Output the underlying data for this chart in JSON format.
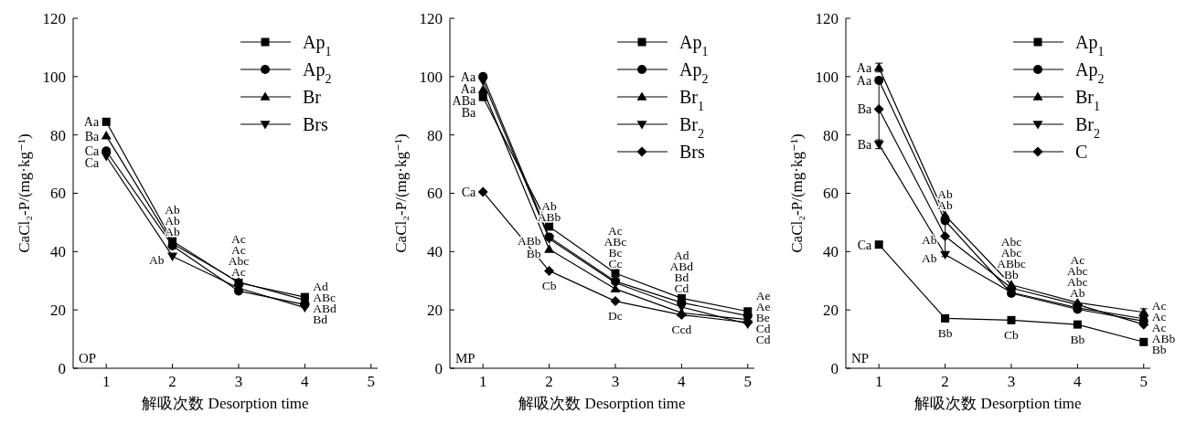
{
  "chart_data": [
    {
      "type": "line",
      "xlabel": "解吸次数 Desorption time",
      "ylabel": "CaCl₂-P/(mg·kg⁻¹)",
      "x": [
        1,
        2,
        3,
        4
      ],
      "xlim": [
        0.5,
        5.1
      ],
      "xticks": [
        1,
        2,
        3,
        4,
        5
      ],
      "ylim": [
        0,
        120
      ],
      "yticks": [
        0,
        20,
        40,
        60,
        80,
        100,
        120
      ],
      "grid": false,
      "legend": "top right",
      "line_style": "solid",
      "series": [
        {
          "name": "Ap$_{1}$",
          "color": "#000000",
          "marker": "square",
          "values": [
            84.5,
            43.6,
            29.3,
            24.4
          ],
          "value_labels": [
            "Aa",
            "Ab",
            "Ac",
            "Ad"
          ]
        },
        {
          "name": "Ap$_{2}$",
          "color": "#000000",
          "marker": "circle",
          "values": [
            74.5,
            42,
            26.5,
            21.8
          ],
          "value_labels": [
            "Ca",
            "Ab",
            "Ac",
            "ABd"
          ]
        },
        {
          "name": "Br",
          "color": "#000000",
          "marker": "triangle",
          "values": [
            79.7,
            42.8,
            29.6,
            23.4
          ],
          "value_labels": [
            "Ba",
            "Ab",
            "Ac",
            "ABc"
          ]
        },
        {
          "name": "Brs",
          "color": "#000000",
          "marker": "triangle-down",
          "values": [
            72.7,
            38.4,
            27.5,
            20.8
          ],
          "value_labels": [
            "Ca",
            "Ab",
            "Abc",
            "Bd"
          ]
        }
      ],
      "annotations": [
        "OP"
      ]
    },
    {
      "type": "line",
      "xlabel": "解吸次数 Desorption time",
      "ylabel": "CaCl₂-P/(mg·kg⁻¹)",
      "x": [
        1,
        2,
        3,
        4,
        5
      ],
      "xlim": [
        0.5,
        5.1
      ],
      "xticks": [
        1,
        2,
        3,
        4,
        5
      ],
      "ylim": [
        0,
        120
      ],
      "yticks": [
        0,
        20,
        40,
        60,
        80,
        100,
        120
      ],
      "grid": false,
      "legend": "top right",
      "line_style": "solid",
      "series": [
        {
          "name": "Ap$_{1}$",
          "color": "#000000",
          "marker": "square",
          "values": [
            93,
            48.6,
            32.6,
            24,
            19.5
          ],
          "value_labels": [
            "Ba",
            "Ab",
            "Ac",
            "Ad",
            "Ae"
          ]
        },
        {
          "name": "Ap$_{2}$",
          "color": "#000000",
          "marker": "circle",
          "values": [
            100,
            45,
            29.8,
            22.5,
            18
          ],
          "value_labels": [
            "Aa",
            "ABb",
            "ABc",
            "ABd",
            "Ae"
          ]
        },
        {
          "name": "Br$_{1}$",
          "color": "#000000",
          "marker": "triangle",
          "values": [
            95.5,
            40.8,
            27.2,
            19,
            16.7
          ],
          "value_labels": [
            "ABa",
            "Bb",
            "Cc",
            "Cd",
            "Be"
          ]
        },
        {
          "name": "Br$_{2}$",
          "color": "#000000",
          "marker": "triangle-down",
          "values": [
            98.5,
            44.4,
            29.3,
            21,
            15.2
          ],
          "value_labels": [
            "Aa",
            "ABb",
            "Bc",
            "Bd",
            "Cd"
          ]
        },
        {
          "name": "Brs",
          "color": "#000000",
          "marker": "diamond",
          "values": [
            60.5,
            33.4,
            23,
            18.3,
            15.7
          ],
          "value_labels": [
            "Ca",
            "Cb",
            "Dc",
            "Ccd",
            "Cd"
          ]
        }
      ],
      "annotations": [
        "MP"
      ]
    },
    {
      "type": "line",
      "xlabel": "解吸次数 Desorption time",
      "ylabel": "CaCl₂-P/(mg·kg⁻¹)",
      "x": [
        1,
        2,
        3,
        4,
        5
      ],
      "xlim": [
        0.5,
        5.1
      ],
      "xticks": [
        1,
        2,
        3,
        4,
        5
      ],
      "ylim": [
        0,
        120
      ],
      "yticks": [
        0,
        20,
        40,
        60,
        80,
        100,
        120
      ],
      "grid": false,
      "legend": "top right",
      "line_style": "solid",
      "series": [
        {
          "name": "Ap$_{1}$",
          "color": "#000000",
          "marker": "square",
          "values": [
            42.4,
            17.1,
            16.5,
            15,
            9
          ],
          "value_labels": [
            "Ca",
            "Bb",
            "Cb",
            "Bb",
            "Bb"
          ]
        },
        {
          "name": "Ap$_{2}$",
          "color": "#000000",
          "marker": "circle",
          "values": [
            98.7,
            50.6,
            25.7,
            20.2,
            16.2
          ],
          "value_labels": [
            "Aa",
            "Ab",
            "Bb",
            "Ab",
            "Ac"
          ]
        },
        {
          "name": "Br$_{1}$",
          "color": "#000000",
          "marker": "triangle",
          "values": [
            103.1,
            52.4,
            28.6,
            22.5,
            19.2
          ],
          "errors": [
            1.5,
            null,
            null,
            null,
            1.2
          ],
          "value_labels": [
            "Aa",
            "Ab",
            "Abc",
            "Ac",
            "Ac"
          ]
        },
        {
          "name": "Br$_{2}$",
          "color": "#000000",
          "marker": "triangle-down",
          "values": [
            76.8,
            39,
            26,
            20.7,
            17
          ],
          "errors": [
            1.5,
            null,
            null,
            null,
            null
          ],
          "value_labels": [
            "Ba",
            "Ab",
            "ABbc",
            "Abc",
            "Ac"
          ]
        },
        {
          "name": "C",
          "color": "#000000",
          "marker": "diamond",
          "values": [
            88.8,
            45.3,
            27.5,
            21.8,
            15
          ],
          "errors": [
            11,
            7,
            null,
            null,
            null
          ],
          "value_labels": [
            "Ba",
            "Ab",
            "Abc",
            "Abc",
            "ABb"
          ]
        }
      ],
      "annotations": [
        "NP"
      ]
    }
  ]
}
